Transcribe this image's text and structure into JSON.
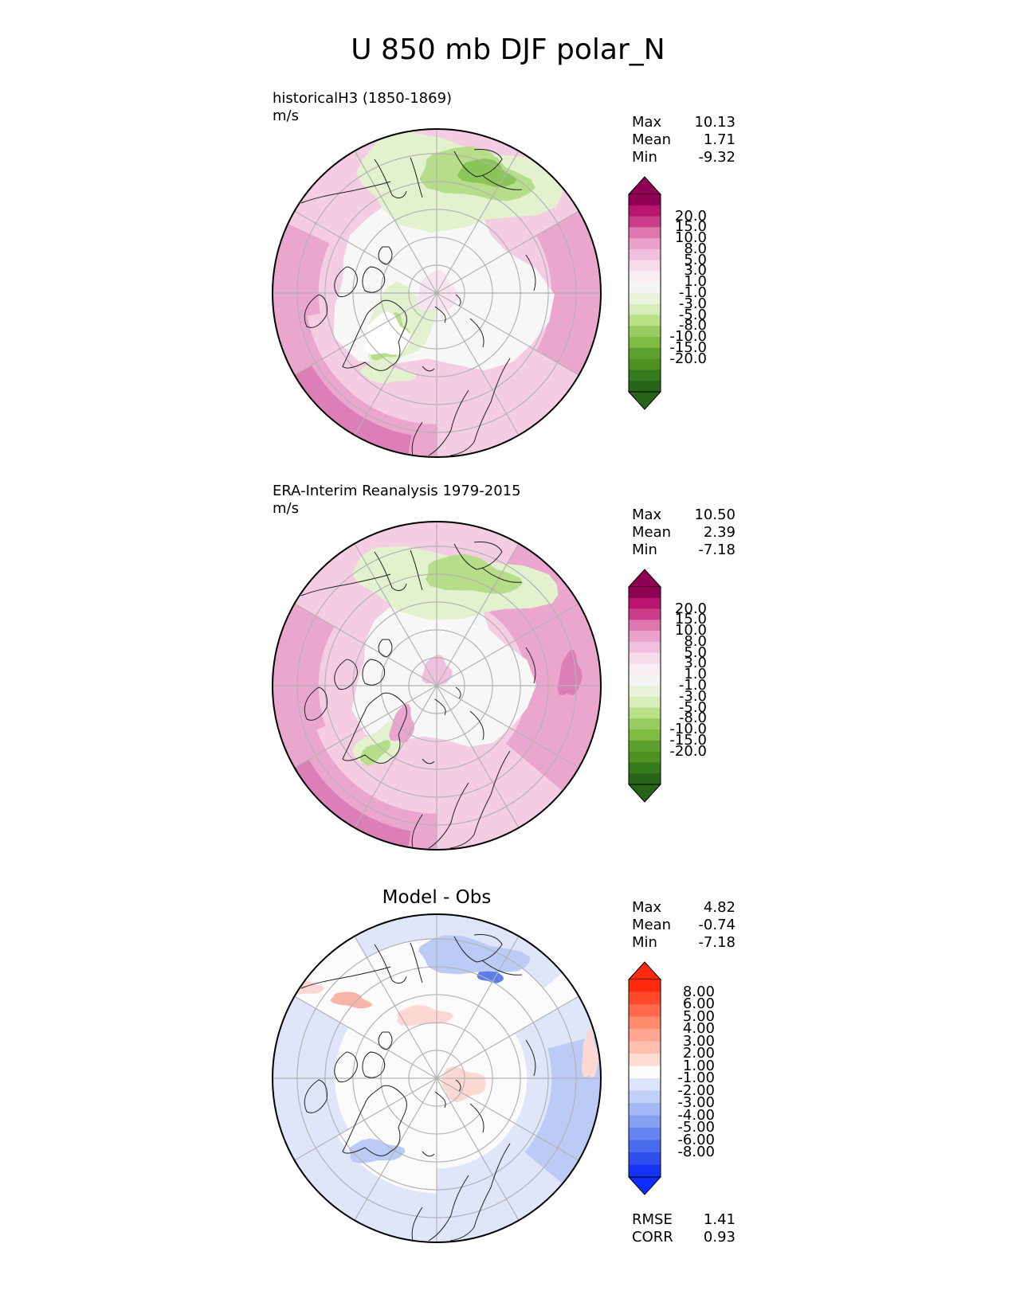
{
  "figure_title": "U 850 mb DJF polar_N",
  "panels": [
    {
      "title_line1": "historicalH3 (1850-1869)",
      "units": "m/s",
      "stats": [
        {
          "label": "Max",
          "value": "10.13"
        },
        {
          "label": "Mean",
          "value": "1.71"
        },
        {
          "label": "Min",
          "value": "-9.32"
        }
      ],
      "colorbar_ticks": [
        "20.0",
        "15.0",
        "10.0",
        "8.0",
        "5.0",
        "3.0",
        "1.0",
        "-1.0",
        "-3.0",
        "-5.0",
        "-8.0",
        "-10.0",
        "-15.0",
        "-20.0"
      ],
      "colorbar_colors": [
        "#8e0152",
        "#b8156f",
        "#cc3d89",
        "#de77ae",
        "#eaa1ca",
        "#f1c0de",
        "#f6dceb",
        "#f9eef4",
        "#f5f5f5",
        "#eaf3dc",
        "#d6ecb9",
        "#b8e186",
        "#98cc63",
        "#7fbc41",
        "#5ea02e",
        "#4d9221",
        "#357a1d",
        "#276419"
      ],
      "extend_top_color": "#8e0152",
      "extend_bottom_color": "#276419",
      "map_palette": {
        "pink_light": "#f4cde3",
        "pink_mid": "#eaa6cd",
        "pink_strong": "#dc7fb6",
        "white": "#f7f7f7",
        "green_light": "#e3f1cf",
        "green_mid": "#b6dd89",
        "green_strong": "#8bc55a"
      }
    },
    {
      "title_line1": "ERA-Interim Reanalysis 1979-2015",
      "units": "m/s",
      "stats": [
        {
          "label": "Max",
          "value": "10.50"
        },
        {
          "label": "Mean",
          "value": "2.39"
        },
        {
          "label": "Min",
          "value": "-7.18"
        }
      ],
      "colorbar_ticks": [
        "20.0",
        "15.0",
        "10.0",
        "8.0",
        "5.0",
        "3.0",
        "1.0",
        "-1.0",
        "-3.0",
        "-5.0",
        "-8.0",
        "-10.0",
        "-15.0",
        "-20.0"
      ],
      "colorbar_colors": [
        "#8e0152",
        "#b8156f",
        "#cc3d89",
        "#de77ae",
        "#eaa1ca",
        "#f1c0de",
        "#f6dceb",
        "#f9eef4",
        "#f5f5f5",
        "#eaf3dc",
        "#d6ecb9",
        "#b8e186",
        "#98cc63",
        "#7fbc41",
        "#5ea02e",
        "#4d9221",
        "#357a1d",
        "#276419"
      ],
      "extend_top_color": "#8e0152",
      "extend_bottom_color": "#276419",
      "map_palette": {
        "pink_light": "#f4cde3",
        "pink_mid": "#eaa6cd",
        "pink_strong": "#dc7fb6",
        "white": "#f7f7f7",
        "green_light": "#e3f1cf",
        "green_mid": "#b6dd89",
        "green_strong": "#8bc55a"
      }
    },
    {
      "title": "Model - Obs",
      "stats": [
        {
          "label": "Max",
          "value": "4.82"
        },
        {
          "label": "Mean",
          "value": "-0.74"
        },
        {
          "label": "Min",
          "value": "-7.18"
        }
      ],
      "colorbar_ticks": [
        "8.00",
        "6.00",
        "5.00",
        "4.00",
        "3.00",
        "2.00",
        "1.00",
        "-1.00",
        "-2.00",
        "-3.00",
        "-4.00",
        "-5.00",
        "-6.00",
        "-8.00"
      ],
      "colorbar_colors": [
        "#ff2a0d",
        "#ff4a2a",
        "#ff6a4a",
        "#ff8a6e",
        "#ffa590",
        "#ffbfae",
        "#ffdcd2",
        "#fcfcfc",
        "#dce3fa",
        "#c2cff8",
        "#a5b8f6",
        "#879ff3",
        "#6685f0",
        "#4a6bee",
        "#2f50ee",
        "#1534f5"
      ],
      "extend_top_color": "#ff2a0d",
      "extend_bottom_color": "#0d2cff",
      "map_palette": {
        "red_light": "#fbd9d2",
        "red_mid": "#f7b5a8",
        "white": "#fbfbfb",
        "blue_light": "#dfe6fa",
        "blue_mid": "#bccbf5",
        "blue_strong": "#5d7de8"
      },
      "error_stats": [
        {
          "label": "RMSE",
          "value": "1.41"
        },
        {
          "label": "CORR",
          "value": "0.93"
        }
      ]
    }
  ],
  "chart_data": [
    {
      "type": "heatmap",
      "title": "historicalH3 (1850-1869)",
      "units": "m/s",
      "projection": "north polar stereographic",
      "variable": "U 850 mb DJF",
      "stats": {
        "max": 10.13,
        "mean": 1.71,
        "min": -9.32
      },
      "colorbar_levels": [
        -20.0,
        -15.0,
        -10.0,
        -8.0,
        -5.0,
        -3.0,
        -1.0,
        1.0,
        3.0,
        5.0,
        8.0,
        10.0,
        15.0,
        20.0
      ]
    },
    {
      "type": "heatmap",
      "title": "ERA-Interim Reanalysis 1979-2015",
      "units": "m/s",
      "projection": "north polar stereographic",
      "variable": "U 850 mb DJF",
      "stats": {
        "max": 10.5,
        "mean": 2.39,
        "min": -7.18
      },
      "colorbar_levels": [
        -20.0,
        -15.0,
        -10.0,
        -8.0,
        -5.0,
        -3.0,
        -1.0,
        1.0,
        3.0,
        5.0,
        8.0,
        10.0,
        15.0,
        20.0
      ]
    },
    {
      "type": "heatmap",
      "title": "Model - Obs",
      "projection": "north polar stereographic",
      "variable": "U 850 mb DJF",
      "stats": {
        "max": 4.82,
        "mean": -0.74,
        "min": -7.18,
        "rmse": 1.41,
        "corr": 0.93
      },
      "colorbar_levels": [
        -8.0,
        -6.0,
        -5.0,
        -4.0,
        -3.0,
        -2.0,
        -1.0,
        1.0,
        2.0,
        3.0,
        4.0,
        5.0,
        6.0,
        8.0
      ]
    }
  ]
}
